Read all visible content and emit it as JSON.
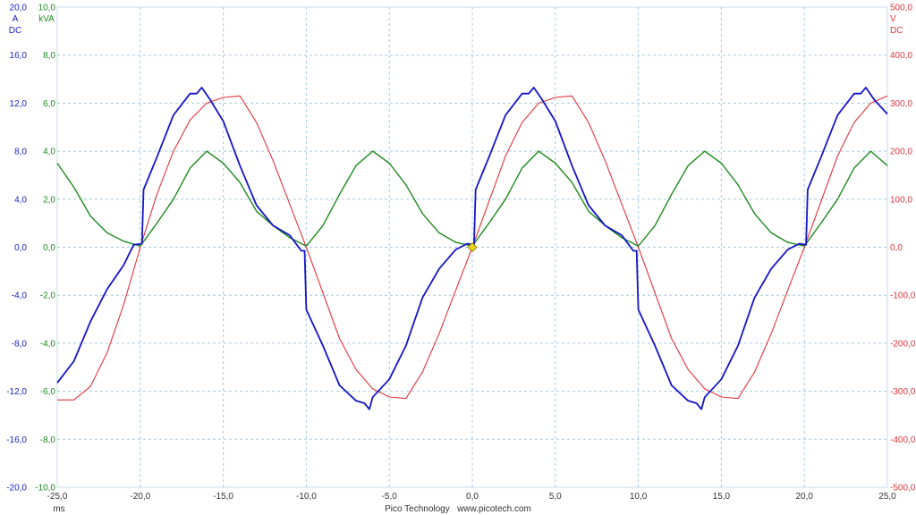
{
  "chart_data": {
    "type": "line",
    "x_unit": "ms",
    "xlim": [
      -25,
      25
    ],
    "x_ticks": [
      "-25,0",
      "-20,0",
      "-15,0",
      "-10,0",
      "-5,0",
      "0,0",
      "5,0",
      "10,0",
      "15,0",
      "20,0",
      "25,0"
    ],
    "grid": true,
    "axes": {
      "current": {
        "unit": "A",
        "coupling": "DC",
        "color": "#1a1acc",
        "ylim": [
          -20,
          20
        ],
        "ticks": [
          "20,0",
          "16,0",
          "12,0",
          "8,0",
          "4,0",
          "0,0",
          "-4,0",
          "-8,0",
          "-12,0",
          "-16,0",
          "-20,0"
        ]
      },
      "power": {
        "unit": "kVA",
        "color": "#1e8a1e",
        "ylim": [
          -10,
          10
        ],
        "ticks": [
          "10,0",
          "8,0",
          "6,0",
          "4,0",
          "2,0",
          "0,0",
          "-2,0",
          "-4,0",
          "-6,0",
          "-8,0",
          "-10,0"
        ]
      },
      "voltage": {
        "unit": "V",
        "coupling": "DC",
        "color": "#e0353b",
        "ylim": [
          -500,
          500
        ],
        "ticks": [
          "500,0",
          "400,0",
          "300,0",
          "200,0",
          "100,0",
          "0,0",
          "-100,0",
          "-200,0",
          "-300,0",
          "-400,0",
          "-500,0"
        ]
      }
    },
    "series": [
      {
        "axis": "current",
        "color": "#1414c8",
        "x": [
          -25,
          -24,
          -23,
          -22,
          -21,
          -20.4,
          -19.9,
          -19.8,
          -19,
          -18,
          -17,
          -16.6,
          -16.3,
          -15.8,
          -15,
          -14,
          -13,
          -12,
          -11,
          -10.3,
          -10.1,
          -10,
          -9,
          -8,
          -7,
          -6.5,
          -6.2,
          -6,
          -5,
          -4,
          -3,
          -2,
          -1,
          -0.3,
          0.1,
          0.2,
          1,
          2,
          3,
          3.4,
          3.7,
          4.2,
          5,
          6,
          7,
          8,
          9,
          9.7,
          9.9,
          10,
          11,
          12,
          13,
          13.5,
          13.8,
          14,
          15,
          16,
          17,
          18,
          19,
          19.7,
          20.1,
          20.2,
          21,
          22,
          23,
          23.4,
          23.7,
          24.2,
          25
        ],
        "y": [
          -11.3,
          -9.5,
          -6.2,
          -3.5,
          -1.5,
          0.2,
          0.3,
          4.8,
          7.5,
          11,
          12.8,
          12.8,
          13.3,
          12.3,
          10.5,
          6.8,
          3.5,
          1.8,
          1,
          -0.3,
          -0.3,
          -5.2,
          -8.2,
          -11.5,
          -12.8,
          -13,
          -13.5,
          -12.5,
          -11,
          -8.2,
          -4.2,
          -1.8,
          -0.2,
          0.3,
          0.2,
          4.8,
          7.5,
          11,
          12.8,
          12.8,
          13.3,
          12.3,
          10.5,
          6.8,
          3.5,
          1.8,
          1,
          -0.3,
          -0.3,
          -5.2,
          -8.2,
          -11.5,
          -12.8,
          -13,
          -13.5,
          -12.5,
          -11,
          -8.2,
          -4.2,
          -1.8,
          -0.2,
          0.3,
          0.2,
          4.8,
          7.5,
          11,
          12.8,
          12.8,
          13.3,
          12.3,
          11.1
        ]
      },
      {
        "axis": "power",
        "color": "#1e8a1e",
        "x": [
          -25,
          -24,
          -23,
          -22,
          -21,
          -20,
          -19,
          -18,
          -17,
          -16,
          -15,
          -14,
          -13,
          -12,
          -11,
          -10,
          -9,
          -8,
          -7,
          -6,
          -5,
          -4,
          -3,
          -2,
          -1,
          0,
          1,
          2,
          3,
          4,
          5,
          6,
          7,
          8,
          9,
          10,
          11,
          12,
          13,
          14,
          15,
          16,
          17,
          18,
          19,
          20,
          21,
          22,
          23,
          24,
          25
        ],
        "y": [
          3.5,
          2.5,
          1.3,
          0.6,
          0.25,
          0.05,
          1.0,
          2.0,
          3.3,
          4.0,
          3.5,
          2.7,
          1.5,
          0.9,
          0.4,
          0.05,
          0.9,
          2.2,
          3.4,
          4.0,
          3.5,
          2.6,
          1.4,
          0.6,
          0.2,
          0.05,
          1.0,
          2.0,
          3.3,
          4.0,
          3.5,
          2.7,
          1.5,
          0.9,
          0.4,
          0.05,
          0.9,
          2.2,
          3.4,
          4.0,
          3.5,
          2.6,
          1.4,
          0.6,
          0.2,
          0.05,
          1.0,
          2.0,
          3.3,
          4.0,
          3.4
        ]
      },
      {
        "axis": "voltage",
        "color": "#e0353b",
        "x": [
          -25,
          -24,
          -23,
          -22,
          -21,
          -20,
          -19,
          -18,
          -17,
          -16,
          -15,
          -14,
          -13,
          -12,
          -11,
          -10,
          -9,
          -8,
          -7,
          -6,
          -5,
          -4,
          -3,
          -2,
          -1,
          0,
          1,
          2,
          3,
          4,
          5,
          6,
          7,
          8,
          9,
          10,
          11,
          12,
          13,
          14,
          15,
          16,
          17,
          18,
          19,
          20,
          21,
          22,
          23,
          24,
          25
        ],
        "y": [
          -318,
          -318,
          -290,
          -220,
          -120,
          0,
          110,
          200,
          265,
          300,
          312,
          315,
          260,
          180,
          90,
          0,
          -95,
          -190,
          -255,
          -295,
          -312,
          -315,
          -260,
          -180,
          -90,
          0,
          95,
          190,
          260,
          300,
          312,
          315,
          260,
          180,
          90,
          0,
          -95,
          -190,
          -255,
          -295,
          -312,
          -315,
          -260,
          -180,
          -90,
          0,
          95,
          190,
          260,
          300,
          315
        ]
      }
    ],
    "marker": {
      "x": 0,
      "y": 0,
      "axis": "voltage",
      "color": "#e8d21a"
    }
  },
  "footer": {
    "x_unit": "ms",
    "brand": "Pico Technology   www.picotech.com"
  }
}
